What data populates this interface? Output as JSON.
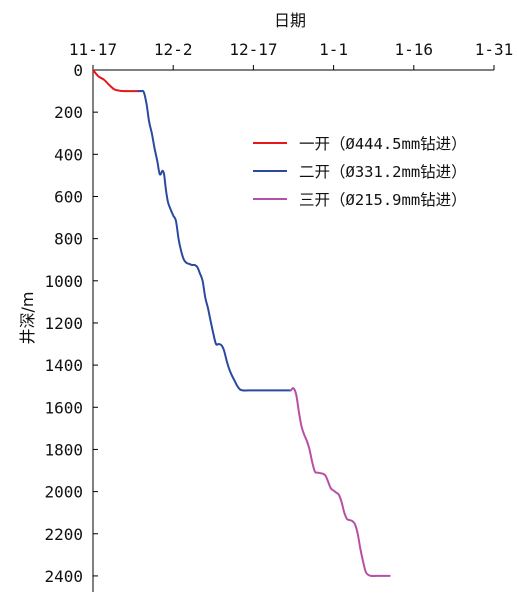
{
  "chart_data": {
    "type": "line",
    "xlabel": "日期",
    "ylabel": "井深/m",
    "x_axis_position": "top",
    "y_axis_inverted": true,
    "xlim": [
      "11-17",
      "1-31"
    ],
    "ylim": [
      0,
      2450
    ],
    "x_ticks": [
      "11-17",
      "12-2",
      "12-17",
      "1-1",
      "1-16",
      "1-31"
    ],
    "y_ticks": [
      0,
      200,
      400,
      600,
      800,
      1000,
      1200,
      1400,
      1600,
      1800,
      2000,
      2200,
      2400
    ],
    "grid": false,
    "legend_position": "right",
    "series": [
      {
        "name": "一开（Ø444.5mm钻进）",
        "color": "#e8161b",
        "points": [
          [
            0,
            0
          ],
          [
            1,
            30
          ],
          [
            2,
            45
          ],
          [
            3,
            70
          ],
          [
            4,
            92
          ],
          [
            5,
            98
          ],
          [
            6,
            100
          ],
          [
            7,
            100
          ],
          [
            8.5,
            100
          ]
        ]
      },
      {
        "name": "二开（Ø331.2mm钻进）",
        "color": "#2a4aa0",
        "points": [
          [
            8.5,
            100
          ],
          [
            9,
            100
          ],
          [
            9.5,
            105
          ],
          [
            10,
            160
          ],
          [
            10.5,
            245
          ],
          [
            11,
            300
          ],
          [
            11.5,
            370
          ],
          [
            12,
            430
          ],
          [
            12.5,
            495
          ],
          [
            13,
            478
          ],
          [
            13.3,
            495
          ],
          [
            13.6,
            560
          ],
          [
            14,
            625
          ],
          [
            14.5,
            660
          ],
          [
            15,
            690
          ],
          [
            15.5,
            715
          ],
          [
            16,
            800
          ],
          [
            16.5,
            860
          ],
          [
            17,
            900
          ],
          [
            17.5,
            915
          ],
          [
            18,
            920
          ],
          [
            18.5,
            925
          ],
          [
            19,
            925
          ],
          [
            19.5,
            935
          ],
          [
            20,
            965
          ],
          [
            20.5,
            1000
          ],
          [
            21,
            1080
          ],
          [
            21.5,
            1130
          ],
          [
            22,
            1190
          ],
          [
            22.5,
            1250
          ],
          [
            23,
            1300
          ],
          [
            23.5,
            1300
          ],
          [
            24,
            1305
          ],
          [
            24.5,
            1330
          ],
          [
            25,
            1380
          ],
          [
            25.5,
            1420
          ],
          [
            26,
            1450
          ],
          [
            26.5,
            1475
          ],
          [
            27,
            1500
          ],
          [
            27.5,
            1515
          ],
          [
            28,
            1520
          ],
          [
            29,
            1520
          ],
          [
            31,
            1520
          ],
          [
            34,
            1520
          ],
          [
            36,
            1520
          ],
          [
            37,
            1520
          ]
        ]
      },
      {
        "name": "三开（Ø215.9mm钻进）",
        "color": "#b94fa5",
        "points": [
          [
            37,
            1520
          ],
          [
            37.5,
            1510
          ],
          [
            38,
            1540
          ],
          [
            38.5,
            1620
          ],
          [
            39,
            1690
          ],
          [
            39.5,
            1730
          ],
          [
            40,
            1760
          ],
          [
            40.5,
            1800
          ],
          [
            41,
            1860
          ],
          [
            41.5,
            1905
          ],
          [
            42,
            1910
          ],
          [
            43,
            1915
          ],
          [
            43.5,
            1925
          ],
          [
            44,
            1955
          ],
          [
            44.5,
            1985
          ],
          [
            45,
            1995
          ],
          [
            45.5,
            2005
          ],
          [
            46,
            2015
          ],
          [
            46.5,
            2050
          ],
          [
            47,
            2100
          ],
          [
            47.5,
            2130
          ],
          [
            48,
            2135
          ],
          [
            48.5,
            2140
          ],
          [
            49,
            2155
          ],
          [
            49.5,
            2200
          ],
          [
            50,
            2270
          ],
          [
            50.5,
            2330
          ],
          [
            51,
            2380
          ],
          [
            51.5,
            2395
          ],
          [
            52,
            2400
          ],
          [
            53,
            2400
          ],
          [
            54,
            2400
          ],
          [
            55,
            2400
          ],
          [
            55.5,
            2400
          ]
        ]
      }
    ]
  }
}
